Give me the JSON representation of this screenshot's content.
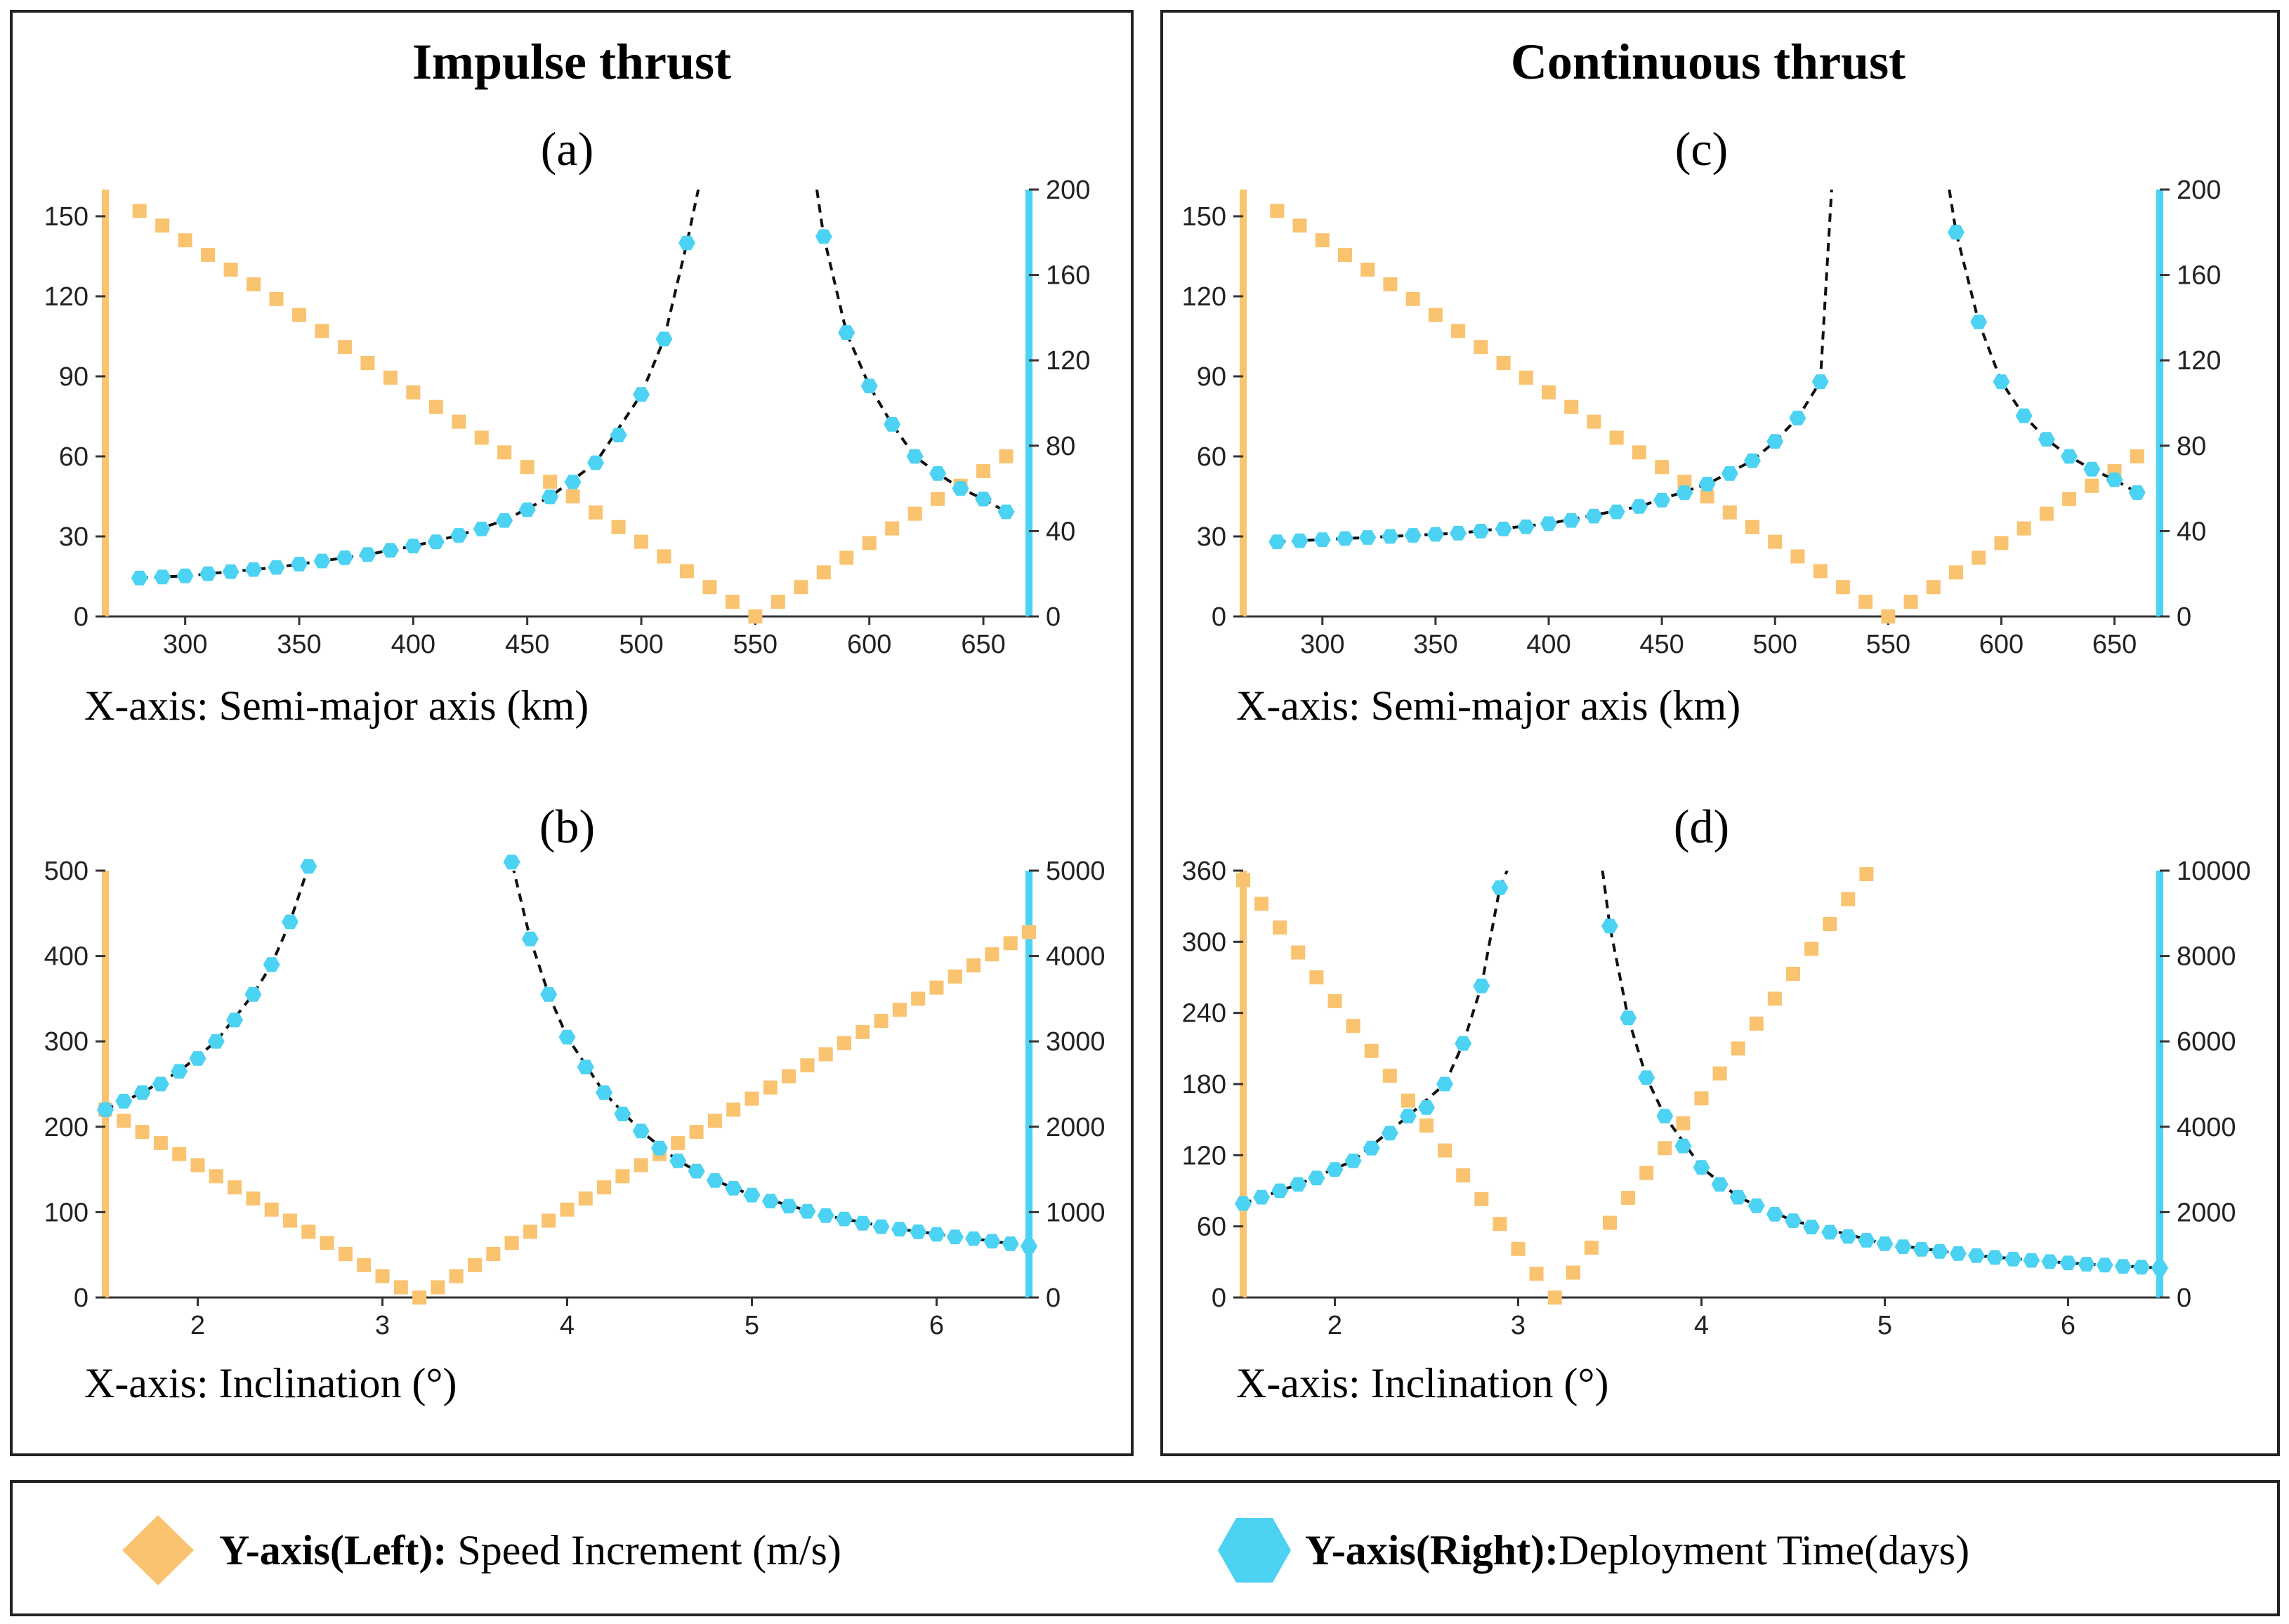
{
  "colors": {
    "left": "#F9C370",
    "right": "#4CD2F2",
    "curve": "#111111",
    "frame": "#222222"
  },
  "groups": [
    {
      "title": "Impulse thrust"
    },
    {
      "title": "Continuous thrust"
    }
  ],
  "legend": {
    "left_bold": "Y-axis(Left):",
    "left_text": " Speed Increment (m/s)",
    "right_bold": "Y-axis(Right):",
    "right_text": "Deployment Time(days)",
    "left_icon": "diamond-icon",
    "right_icon": "hexagon-icon"
  },
  "chart_data": [
    {
      "id": "a",
      "label": "(a)",
      "type": "scatter",
      "xlabel": "X-axis: Semi-major axis (km)",
      "xlim": [
        265,
        670
      ],
      "xticks": [
        300,
        350,
        400,
        450,
        500,
        550,
        600,
        650
      ],
      "ylim_left": [
        0,
        160
      ],
      "yticks_left": [
        0,
        30,
        60,
        90,
        120,
        150
      ],
      "ylim_right": [
        0,
        200
      ],
      "yticks_right": [
        0,
        40,
        80,
        120,
        160,
        200
      ],
      "series": [
        {
          "name": "Speed Increment (m/s)",
          "axis": "left",
          "x": [
            280,
            290,
            300,
            310,
            320,
            330,
            340,
            350,
            360,
            370,
            380,
            390,
            400,
            410,
            420,
            430,
            440,
            450,
            460,
            470,
            480,
            490,
            500,
            510,
            520,
            530,
            540,
            550,
            560,
            570,
            580,
            590,
            600,
            610,
            620,
            630,
            640,
            650,
            660
          ],
          "y": [
            152,
            146.5,
            141,
            135.5,
            130,
            124.5,
            119,
            113,
            107,
            101,
            95,
            89.5,
            84,
            78.5,
            73,
            67,
            61.5,
            56,
            50.5,
            45,
            39,
            33.5,
            28,
            22.5,
            17,
            11,
            5.5,
            0,
            5.5,
            11,
            16.5,
            22,
            27.5,
            33,
            38.5,
            44,
            49,
            54.5,
            60
          ]
        },
        {
          "name": "Deployment Time(days)",
          "axis": "right",
          "x": [
            280,
            290,
            300,
            310,
            320,
            330,
            340,
            350,
            360,
            370,
            380,
            390,
            400,
            410,
            420,
            430,
            440,
            450,
            460,
            470,
            480,
            490,
            500,
            510,
            520,
            580,
            590,
            600,
            610,
            620,
            630,
            640,
            650,
            660
          ],
          "y": [
            18,
            18.5,
            19,
            20,
            21,
            22,
            23,
            24.5,
            26,
            27.5,
            29,
            31,
            33,
            35,
            38,
            41,
            45,
            50,
            56,
            63,
            72,
            85,
            104,
            130,
            175,
            178,
            133,
            108,
            90,
            75,
            67,
            60,
            55,
            49
          ],
          "curve_segments": [
            {
              "x": [
                280,
                300,
                320,
                340,
                360,
                380,
                400,
                420,
                440,
                460,
                480,
                500,
                510,
                520,
                525
              ],
              "y": [
                18,
                19,
                21,
                23,
                26,
                29,
                33,
                38,
                45,
                56,
                72,
                104,
                130,
                175,
                200
              ]
            },
            {
              "x": [
                577,
                580,
                590,
                600,
                610,
                620,
                630,
                640,
                650,
                660
              ],
              "y": [
                200,
                178,
                133,
                108,
                90,
                75,
                67,
                60,
                55,
                49
              ]
            }
          ]
        }
      ]
    },
    {
      "id": "b",
      "label": "(b)",
      "type": "scatter",
      "xlabel": "X-axis: Inclination (°)",
      "xlim": [
        1.5,
        6.5
      ],
      "xticks": [
        2,
        3,
        4,
        5,
        6
      ],
      "ylim_left": [
        0,
        500
      ],
      "yticks_left": [
        0,
        100,
        200,
        300,
        400,
        500
      ],
      "ylim_right": [
        0,
        5000
      ],
      "yticks_right": [
        0,
        1000,
        2000,
        3000,
        4000,
        5000
      ],
      "series": [
        {
          "name": "Speed Increment (m/s)",
          "axis": "left",
          "x": [
            1.5,
            1.6,
            1.7,
            1.8,
            1.9,
            2.0,
            2.1,
            2.2,
            2.3,
            2.4,
            2.5,
            2.6,
            2.7,
            2.8,
            2.9,
            3.0,
            3.1,
            3.2,
            3.3,
            3.4,
            3.5,
            3.6,
            3.7,
            3.8,
            3.9,
            4.0,
            4.1,
            4.2,
            4.3,
            4.4,
            4.5,
            4.6,
            4.7,
            4.8,
            4.9,
            5.0,
            5.1,
            5.2,
            5.3,
            5.4,
            5.5,
            5.6,
            5.7,
            5.8,
            5.9,
            6.0,
            6.1,
            6.2,
            6.3,
            6.4,
            6.5
          ],
          "y": [
            220,
            207,
            194,
            181,
            168,
            155,
            142,
            129,
            116,
            103,
            90,
            77,
            64,
            51,
            38,
            25,
            12,
            0,
            12,
            25,
            38,
            51,
            64,
            77,
            90,
            103,
            116,
            129,
            142,
            155,
            168,
            181,
            194,
            207,
            220,
            233,
            246,
            259,
            272,
            285,
            298,
            311,
            324,
            337,
            350,
            363,
            376,
            389,
            402,
            415,
            428
          ]
        },
        {
          "name": "Deployment Time(days)",
          "axis": "right",
          "x": [
            1.5,
            1.6,
            1.7,
            1.8,
            1.9,
            2.0,
            2.1,
            2.2,
            2.3,
            2.4,
            2.5,
            2.6,
            3.7,
            3.8,
            3.9,
            4.0,
            4.1,
            4.2,
            4.3,
            4.4,
            4.5,
            4.6,
            4.7,
            4.8,
            4.9,
            5.0,
            5.1,
            5.2,
            5.3,
            5.4,
            5.5,
            5.6,
            5.7,
            5.8,
            5.9,
            6.0,
            6.1,
            6.2,
            6.3,
            6.4,
            6.5
          ],
          "y": [
            2200,
            2300,
            2400,
            2500,
            2650,
            2800,
            3000,
            3250,
            3550,
            3900,
            4400,
            5050,
            5100,
            4200,
            3550,
            3050,
            2700,
            2400,
            2150,
            1950,
            1750,
            1600,
            1480,
            1370,
            1280,
            1200,
            1130,
            1070,
            1010,
            960,
            920,
            870,
            830,
            800,
            770,
            740,
            710,
            690,
            660,
            630,
            600
          ],
          "curve_segments": [
            {
              "x": [
                1.5,
                1.7,
                1.9,
                2.1,
                2.3,
                2.4,
                2.5,
                2.6
              ],
              "y": [
                2200,
                2400,
                2650,
                3000,
                3550,
                3900,
                4400,
                5050
              ]
            },
            {
              "x": [
                3.66,
                3.7,
                3.8,
                3.9,
                4.0,
                4.2,
                4.4,
                4.6,
                4.8,
                5.0,
                5.4,
                5.8,
                6.2,
                6.5
              ],
              "y": [
                5400,
                5100,
                4200,
                3550,
                3050,
                2400,
                1950,
                1600,
                1370,
                1200,
                960,
                800,
                690,
                600
              ]
            }
          ]
        }
      ]
    },
    {
      "id": "c",
      "label": "(c)",
      "type": "scatter",
      "xlabel": "X-axis: Semi-major axis (km)",
      "xlim": [
        265,
        670
      ],
      "xticks": [
        300,
        350,
        400,
        450,
        500,
        550,
        600,
        650
      ],
      "ylim_left": [
        0,
        160
      ],
      "yticks_left": [
        0,
        30,
        60,
        90,
        120,
        150
      ],
      "ylim_right": [
        0,
        200
      ],
      "yticks_right": [
        0,
        40,
        80,
        120,
        160,
        200
      ],
      "series": [
        {
          "name": "Speed Increment (m/s)",
          "axis": "left",
          "x": [
            280,
            290,
            300,
            310,
            320,
            330,
            340,
            350,
            360,
            370,
            380,
            390,
            400,
            410,
            420,
            430,
            440,
            450,
            460,
            470,
            480,
            490,
            500,
            510,
            520,
            530,
            540,
            550,
            560,
            570,
            580,
            590,
            600,
            610,
            620,
            630,
            640,
            650,
            660
          ],
          "y": [
            152,
            146.5,
            141,
            135.5,
            130,
            124.5,
            119,
            113,
            107,
            101,
            95,
            89.5,
            84,
            78.5,
            73,
            67,
            61.5,
            56,
            50.5,
            45,
            39,
            33.5,
            28,
            22.5,
            17,
            11,
            5.5,
            0,
            5.5,
            11,
            16.5,
            22,
            27.5,
            33,
            38.5,
            44,
            49,
            54.5,
            60
          ]
        },
        {
          "name": "Deployment Time(days)",
          "axis": "right",
          "x": [
            280,
            290,
            300,
            310,
            320,
            330,
            340,
            350,
            360,
            370,
            380,
            390,
            400,
            410,
            420,
            430,
            440,
            450,
            460,
            470,
            480,
            490,
            500,
            510,
            520,
            580,
            590,
            600,
            610,
            620,
            630,
            640,
            650,
            660
          ],
          "y": [
            35,
            35.5,
            36,
            36.5,
            37,
            37.5,
            38,
            38.5,
            39,
            40,
            41,
            42,
            43.5,
            45,
            47,
            49,
            51.5,
            54.5,
            58,
            62,
            67,
            73,
            82,
            93,
            110,
            180,
            138,
            110,
            94,
            83,
            75,
            69,
            64,
            58
          ],
          "curve_segments": [
            {
              "x": [
                280,
                320,
                360,
                400,
                440,
                470,
                490,
                500,
                510,
                520,
                525
              ],
              "y": [
                35,
                37,
                39,
                43.5,
                51.5,
                62,
                73,
                82,
                93,
                110,
                200
              ]
            },
            {
              "x": [
                577,
                580,
                590,
                600,
                610,
                620,
                630,
                640,
                650,
                660
              ],
              "y": [
                200,
                180,
                138,
                110,
                94,
                83,
                75,
                69,
                64,
                58
              ]
            }
          ]
        }
      ]
    },
    {
      "id": "d",
      "label": "(d)",
      "type": "scatter",
      "xlabel": "X-axis: Inclination (°)",
      "xlim": [
        1.5,
        6.5
      ],
      "xticks": [
        2,
        3,
        4,
        5,
        6
      ],
      "ylim_left": [
        0,
        360
      ],
      "yticks_left": [
        0,
        60,
        120,
        180,
        240,
        300,
        360
      ],
      "ylim_right": [
        0,
        10000
      ],
      "yticks_right": [
        0,
        2000,
        4000,
        6000,
        8000,
        10000
      ],
      "series": [
        {
          "name": "Speed Increment (m/s)",
          "axis": "left",
          "x": [
            1.5,
            1.6,
            1.7,
            1.8,
            1.9,
            2.0,
            2.1,
            2.2,
            2.3,
            2.4,
            2.5,
            2.6,
            2.7,
            2.8,
            2.9,
            3.0,
            3.1,
            3.2,
            3.3,
            3.4,
            3.5,
            3.6,
            3.7,
            3.8,
            3.9,
            4.0,
            4.1,
            4.2,
            4.3,
            4.4,
            4.5,
            4.6,
            4.7,
            4.8,
            4.9
          ],
          "y": [
            352,
            332,
            312,
            291,
            270,
            250,
            229,
            208,
            187,
            166,
            145,
            124,
            103,
            83,
            62,
            41,
            20,
            0,
            21,
            42,
            63,
            84,
            105,
            126,
            147,
            168,
            189,
            210,
            231,
            252,
            273,
            294,
            315,
            336,
            357
          ]
        },
        {
          "name": "Deployment Time(days)",
          "axis": "right",
          "x": [
            1.5,
            1.6,
            1.7,
            1.8,
            1.9,
            2.0,
            2.1,
            2.2,
            2.3,
            2.4,
            2.5,
            2.6,
            2.7,
            2.8,
            2.9,
            3.5,
            3.6,
            3.7,
            3.8,
            3.9,
            4.0,
            4.1,
            4.2,
            4.3,
            4.4,
            4.5,
            4.6,
            4.7,
            4.8,
            4.9,
            5.0,
            5.1,
            5.2,
            5.3,
            5.4,
            5.5,
            5.6,
            5.7,
            5.8,
            5.9,
            6.0,
            6.1,
            6.2,
            6.3,
            6.4,
            6.5
          ],
          "y": [
            2200,
            2350,
            2500,
            2650,
            2800,
            3000,
            3200,
            3500,
            3850,
            4250,
            4450,
            5000,
            5950,
            7300,
            9600,
            8700,
            6550,
            5150,
            4250,
            3550,
            3050,
            2650,
            2350,
            2150,
            1950,
            1800,
            1650,
            1530,
            1430,
            1340,
            1260,
            1190,
            1130,
            1080,
            1030,
            980,
            940,
            900,
            870,
            840,
            810,
            780,
            760,
            730,
            710,
            690
          ],
          "curve_segments": [
            {
              "x": [
                1.5,
                1.8,
                2.1,
                2.4,
                2.6,
                2.7,
                2.8,
                2.9,
                2.94
              ],
              "y": [
                2200,
                2650,
                3200,
                4250,
                5000,
                5950,
                7300,
                9600,
                10000
              ]
            },
            {
              "x": [
                3.46,
                3.5,
                3.6,
                3.7,
                3.8,
                4.0,
                4.2,
                4.5,
                5.0,
                5.5,
                6.0,
                6.5
              ],
              "y": [
                10000,
                8700,
                6550,
                5150,
                4250,
                3050,
                2350,
                1800,
                1260,
                980,
                810,
                690
              ]
            }
          ]
        }
      ]
    }
  ]
}
